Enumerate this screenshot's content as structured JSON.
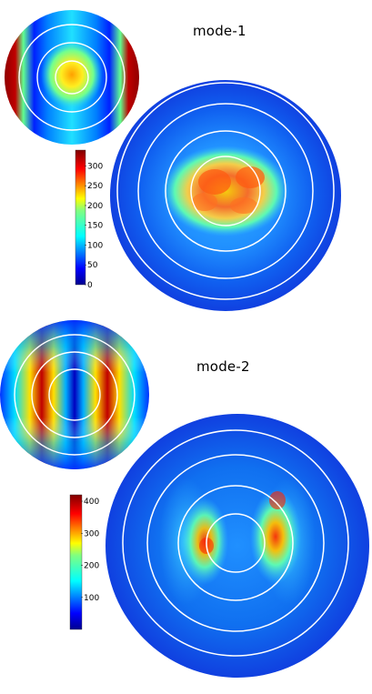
{
  "panels": [
    {
      "title": "mode-1",
      "colorbar": {
        "min": 0,
        "max": 340,
        "tick_labels": [
          "300",
          "250",
          "200",
          "150",
          "100",
          "50",
          "0"
        ]
      },
      "pattern": "central lobe with side lobes at edges"
    },
    {
      "title": "mode-2",
      "colorbar": {
        "min": 0,
        "max": 420,
        "tick_labels": [
          "400",
          "300",
          "200",
          "100"
        ]
      },
      "pattern": "two vertical lobes"
    }
  ],
  "colormap": "jet",
  "colors": {
    "ring": "#ffffff",
    "jet_dark_blue": "#00008f",
    "jet_blue": "#0030ff",
    "jet_cyan": "#00e0ff",
    "jet_green_yellow": "#b0ff40",
    "jet_yellow": "#ffe000",
    "jet_red": "#ff2000",
    "jet_dark_red": "#800000"
  }
}
